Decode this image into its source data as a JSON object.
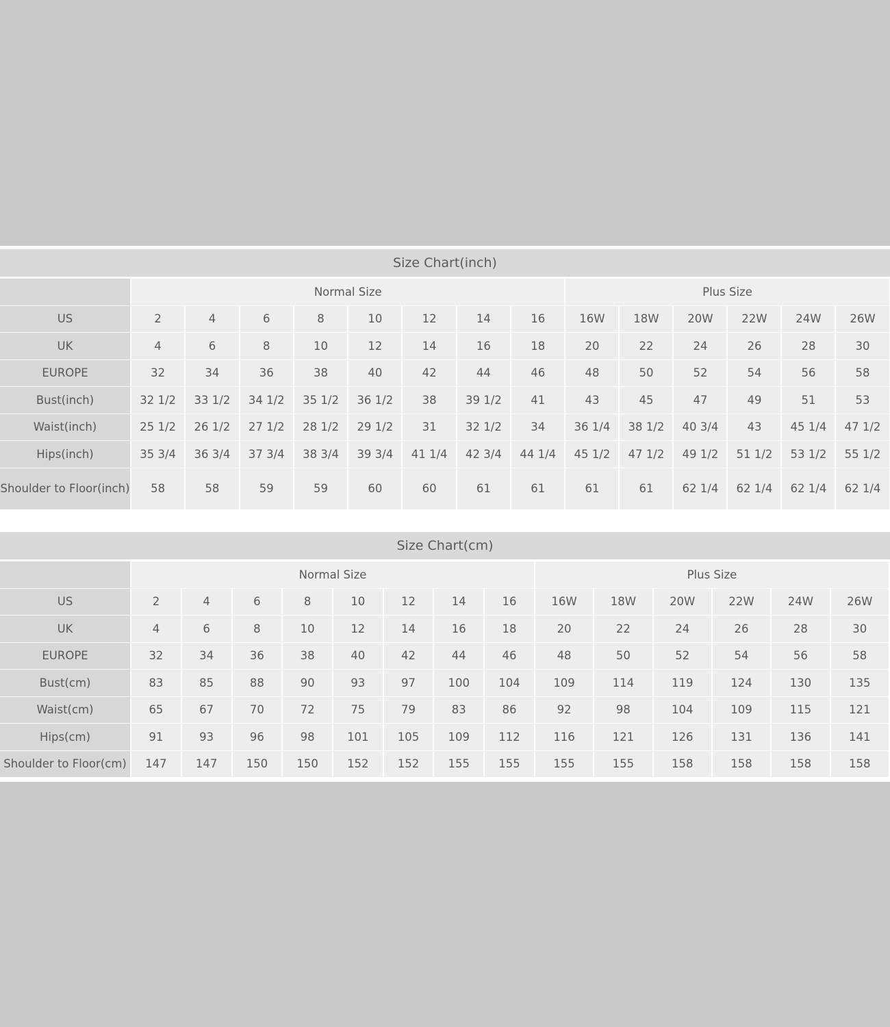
{
  "colors": {
    "background": "#c8c8c8",
    "title_bar": "#d9d9d9",
    "label_cell": "#d7d7d7",
    "data_cell": "#ededed",
    "text": "#585858"
  },
  "tables": [
    {
      "title": "Size Chart(inch)",
      "groups": [
        {
          "label": "Normal Size",
          "span": 8
        },
        {
          "label": "Plus Size",
          "span": 6
        }
      ],
      "rows": [
        {
          "label": "US",
          "values": [
            "2",
            "4",
            "6",
            "8",
            "10",
            "12",
            "14",
            "16",
            "16W",
            "18W",
            "20W",
            "22W",
            "24W",
            "26W"
          ]
        },
        {
          "label": "UK",
          "values": [
            "4",
            "6",
            "8",
            "10",
            "12",
            "14",
            "16",
            "18",
            "20",
            "22",
            "24",
            "26",
            "28",
            "30"
          ]
        },
        {
          "label": "EUROPE",
          "values": [
            "32",
            "34",
            "36",
            "38",
            "40",
            "42",
            "44",
            "46",
            "48",
            "50",
            "52",
            "54",
            "56",
            "58"
          ]
        },
        {
          "label": "Bust(inch)",
          "values": [
            "32 1/2",
            "33 1/2",
            "34 1/2",
            "35 1/2",
            "36 1/2",
            "38",
            "39 1/2",
            "41",
            "43",
            "45",
            "47",
            "49",
            "51",
            "53"
          ]
        },
        {
          "label": "Waist(inch)",
          "values": [
            "25 1/2",
            "26 1/2",
            "27 1/2",
            "28 1/2",
            "29 1/2",
            "31",
            "32 1/2",
            "34",
            "36 1/4",
            "38 1/2",
            "40 3/4",
            "43",
            "45 1/4",
            "47 1/2"
          ]
        },
        {
          "label": "Hips(inch)",
          "values": [
            "35 3/4",
            "36 3/4",
            "37 3/4",
            "38 3/4",
            "39 3/4",
            "41 1/4",
            "42 3/4",
            "44 1/4",
            "45 1/2",
            "47 1/2",
            "49 1/2",
            "51 1/2",
            "53 1/2",
            "55 1/2"
          ]
        },
        {
          "label": "Shoulder to Floor(inch)",
          "values": [
            "58",
            "58",
            "59",
            "59",
            "60",
            "60",
            "61",
            "61",
            "61",
            "61",
            "62 1/4",
            "62 1/4",
            "62 1/4",
            "62 1/4"
          ]
        }
      ]
    },
    {
      "title": "Size Chart(cm)",
      "groups": [
        {
          "label": "Normal Size",
          "span": 8
        },
        {
          "label": "Plus Size",
          "span": 6
        }
      ],
      "rows": [
        {
          "label": "US",
          "values": [
            "2",
            "4",
            "6",
            "8",
            "10",
            "12",
            "14",
            "16",
            "16W",
            "18W",
            "20W",
            "22W",
            "24W",
            "26W"
          ]
        },
        {
          "label": "UK",
          "values": [
            "4",
            "6",
            "8",
            "10",
            "12",
            "14",
            "16",
            "18",
            "20",
            "22",
            "24",
            "26",
            "28",
            "30"
          ]
        },
        {
          "label": "EUROPE",
          "values": [
            "32",
            "34",
            "36",
            "38",
            "40",
            "42",
            "44",
            "46",
            "48",
            "50",
            "52",
            "54",
            "56",
            "58"
          ]
        },
        {
          "label": "Bust(cm)",
          "values": [
            "83",
            "85",
            "88",
            "90",
            "93",
            "97",
            "100",
            "104",
            "109",
            "114",
            "119",
            "124",
            "130",
            "135"
          ]
        },
        {
          "label": "Waist(cm)",
          "values": [
            "65",
            "67",
            "70",
            "72",
            "75",
            "79",
            "83",
            "86",
            "92",
            "98",
            "104",
            "109",
            "115",
            "121"
          ]
        },
        {
          "label": "Hips(cm)",
          "values": [
            "91",
            "93",
            "96",
            "98",
            "101",
            "105",
            "109",
            "112",
            "116",
            "121",
            "126",
            "131",
            "136",
            "141"
          ]
        },
        {
          "label": "Shoulder to Floor(cm)",
          "values": [
            "147",
            "147",
            "150",
            "150",
            "152",
            "152",
            "155",
            "155",
            "155",
            "155",
            "158",
            "158",
            "158",
            "158"
          ]
        }
      ]
    }
  ]
}
